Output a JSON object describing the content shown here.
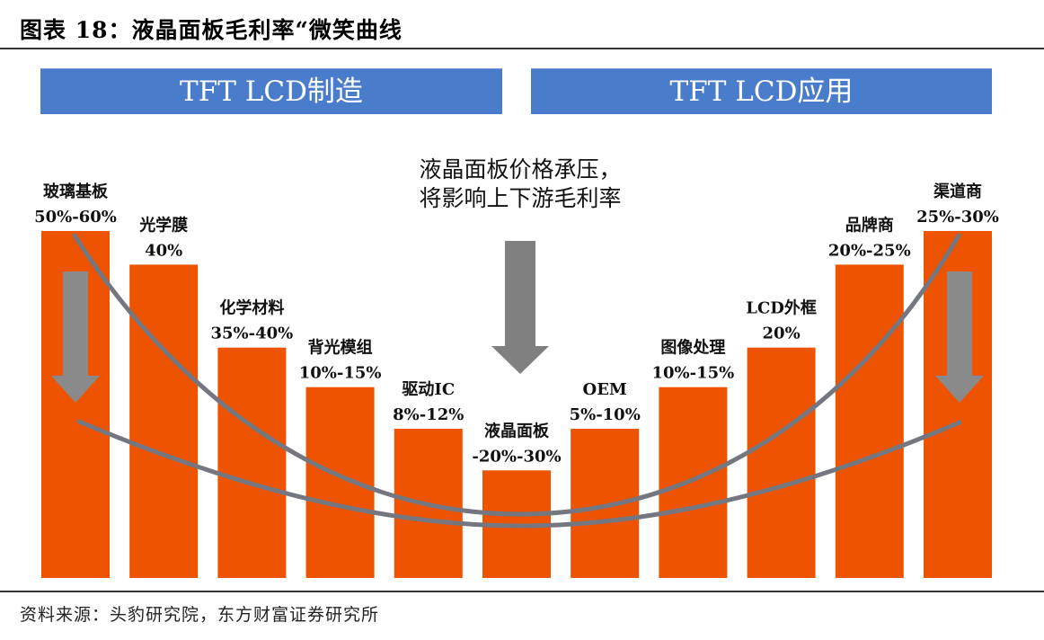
{
  "header": {
    "title": "图表 18：液晶面板毛利率“微笑曲线"
  },
  "banners": {
    "left": "TFT LCD制造",
    "right": "TFT LCD应用"
  },
  "annotation": {
    "line1": "液晶面板价格承压，",
    "line2": "将影响上下游毛利率"
  },
  "source": "资料来源：头豹研究院，东方财富证券研究所",
  "colors": {
    "bar": "#ee5400",
    "curve": "#747680",
    "arrow": "#808080",
    "banner": "#4a7ccc"
  },
  "chart_data": {
    "type": "bar",
    "categories": [
      "玻璃基板",
      "光学膜",
      "化学材料",
      "背光模组",
      "驱动IC",
      "液晶面板",
      "OEM",
      "图像处理",
      "LCD外框",
      "品牌商",
      "渠道商"
    ],
    "value_labels": [
      "50%-60%",
      "40%",
      "35%-40%",
      "10%-15%",
      "8%-12%",
      "-20%-30%",
      "5%-10%",
      "10%-15%",
      "20%",
      "20%-25%",
      "25%-30%"
    ],
    "relative_heights": [
      1.0,
      0.903,
      0.664,
      0.55,
      0.43,
      0.31,
      0.43,
      0.55,
      0.664,
      0.903,
      1.0
    ],
    "overlay": "two U-shaped smile curves with downward arrows"
  }
}
